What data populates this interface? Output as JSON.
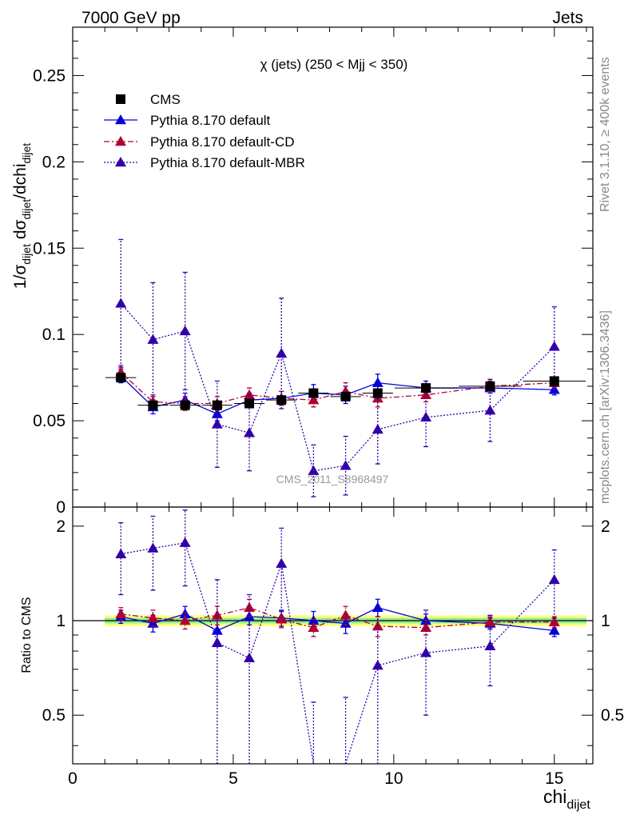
{
  "header": {
    "left": "7000 GeV pp",
    "right": "Jets"
  },
  "side_labels": {
    "rivet": "Rivet 3.1.10, ≥ 400k events",
    "mcplots": "mcplots.cern.ch [arXiv:1306.3436]"
  },
  "chart_data": {
    "type": "scatter",
    "title": "χ (jets) (250 < Mjj <  350)",
    "watermark": "CMS_2011_S8968497",
    "xlabel_main": "chi",
    "xlabel_sub": "dijet",
    "ylabel_main": "1/σ",
    "ylabel_parts": [
      "1/σ",
      "dijet",
      " dσ",
      "dijet",
      "/dchi",
      "dijet"
    ],
    "ratio_ylabel": "Ratio to CMS",
    "xlim": [
      0,
      16.2
    ],
    "ylim": [
      0,
      0.278
    ],
    "ratio_ylim": [
      0.35,
      2.3
    ],
    "x_ticks": [
      0,
      5,
      10,
      15
    ],
    "x_tick_labels": [
      "0",
      "5",
      "10",
      "15"
    ],
    "y_ticks": [
      0,
      0.05,
      0.1,
      0.15,
      0.2,
      0.25
    ],
    "y_tick_labels": [
      "0",
      "0.05",
      "0.1",
      "0.15",
      "0.2",
      "0.25"
    ],
    "ratio_ticks": [
      0.5,
      1,
      2
    ],
    "ratio_tick_labels": [
      "0.5",
      "1",
      "2"
    ],
    "legend_position": "top-left",
    "bins": [
      [
        1,
        2
      ],
      [
        2,
        3
      ],
      [
        3,
        4
      ],
      [
        4,
        5
      ],
      [
        5,
        6
      ],
      [
        6,
        7
      ],
      [
        7,
        8
      ],
      [
        8,
        9
      ],
      [
        9,
        10
      ],
      [
        10,
        12
      ],
      [
        12,
        14
      ],
      [
        14,
        16
      ]
    ],
    "x": [
      1.5,
      2.5,
      3.5,
      4.5,
      5.5,
      6.5,
      7.5,
      8.5,
      9.5,
      11,
      13,
      15
    ],
    "series": [
      {
        "name": "CMS",
        "color": "#000000",
        "marker": "square",
        "values": [
          0.075,
          0.059,
          0.059,
          0.059,
          0.06,
          0.062,
          0.066,
          0.064,
          0.066,
          0.069,
          0.07,
          0.073
        ],
        "errors": [
          0.002,
          0.0018,
          0.0018,
          0.0018,
          0.0018,
          0.0019,
          0.002,
          0.002,
          0.002,
          0.0021,
          0.0021,
          0.0022
        ],
        "band_inner": 0.02,
        "band_outer": 0.04
      },
      {
        "name": "Pythia 8.170 default",
        "color": "#0000dd",
        "marker": "triangle",
        "line": "solid",
        "values": [
          0.076,
          0.058,
          0.062,
          0.054,
          0.062,
          0.063,
          0.066,
          0.065,
          0.072,
          0.069,
          0.069,
          0.068
        ],
        "errors": [
          0.004,
          0.004,
          0.004,
          0.004,
          0.004,
          0.004,
          0.005,
          0.005,
          0.005,
          0.004,
          0.003,
          0.003
        ],
        "ratio": [
          1.03,
          0.98,
          1.05,
          0.93,
          1.03,
          1.02,
          1.0,
          0.98,
          1.1,
          1.0,
          0.98,
          0.93
        ],
        "ratio_errors": [
          0.05,
          0.06,
          0.06,
          0.07,
          0.06,
          0.06,
          0.07,
          0.07,
          0.07,
          0.05,
          0.04,
          0.04
        ]
      },
      {
        "name": "Pythia 8.170 default-CD",
        "color": "#b00030",
        "marker": "triangle",
        "line": "dashdot",
        "values": [
          0.078,
          0.061,
          0.06,
          0.06,
          0.065,
          0.063,
          0.062,
          0.067,
          0.063,
          0.065,
          0.07,
          0.072
        ],
        "errors": [
          0.004,
          0.004,
          0.004,
          0.004,
          0.004,
          0.004,
          0.004,
          0.005,
          0.005,
          0.004,
          0.003,
          0.003
        ],
        "ratio": [
          1.05,
          1.02,
          1.0,
          1.04,
          1.1,
          1.01,
          0.95,
          1.04,
          0.96,
          0.95,
          0.99,
          0.99
        ],
        "ratio_errors": [
          0.05,
          0.06,
          0.06,
          0.07,
          0.07,
          0.06,
          0.06,
          0.07,
          0.07,
          0.05,
          0.04,
          0.04
        ]
      },
      {
        "name": "Pythia 8.170 default-MBR",
        "color": "#3300aa",
        "marker": "triangle",
        "line": "dotted",
        "values": [
          0.118,
          0.097,
          0.102,
          0.048,
          0.043,
          0.089,
          0.021,
          0.024,
          0.045,
          0.052,
          0.056,
          0.093
        ],
        "errors": [
          0.037,
          0.033,
          0.034,
          0.025,
          0.022,
          0.032,
          0.015,
          0.017,
          0.02,
          0.017,
          0.018,
          0.023
        ],
        "ratio": [
          1.63,
          1.7,
          1.77,
          0.85,
          0.76,
          1.52,
          0.3,
          0.32,
          0.72,
          0.79,
          0.83,
          1.35
        ],
        "ratio_errors": [
          0.42,
          0.45,
          0.48,
          0.5,
          0.45,
          0.45,
          0.25,
          0.25,
          0.38,
          0.29,
          0.21,
          0.33
        ]
      }
    ]
  }
}
